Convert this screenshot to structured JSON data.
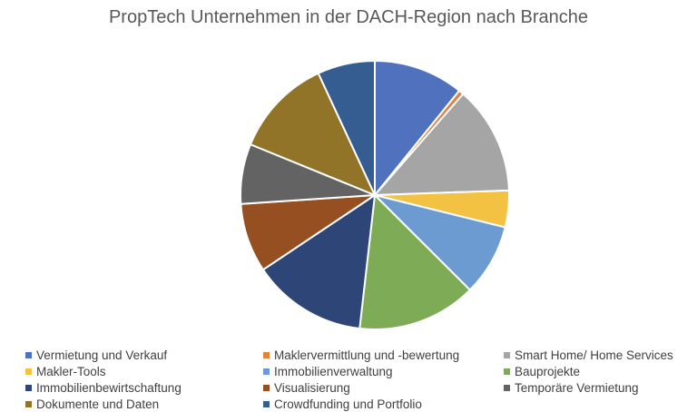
{
  "chart_data": {
    "type": "pie",
    "title": "PropTech Unternehmen in der DACH-Region nach Branche",
    "legend_position": "bottom",
    "categories": [
      "Vermietung und Verkauf",
      "Maklervermittlung und -bewertung",
      "Smart Home/ Home Services",
      "Makler-Tools",
      "Immobilienverwaltung",
      "Bauprojekte",
      "Immobilienbewirtschaftung",
      "Visualisierung",
      "Temporäre Vermietung",
      "Dokumente und Daten",
      "Crowdfunding und Portfolio"
    ],
    "values": [
      10.8,
      0.6,
      13.0,
      4.4,
      8.6,
      14.3,
      13.8,
      8.3,
      7.2,
      11.9,
      6.9
    ],
    "unit": "percent (estimated)",
    "colors": [
      "#4f71be",
      "#dd8344",
      "#a5a5a5",
      "#f3c242",
      "#6b9bd1",
      "#7eab55",
      "#2e4677",
      "#954f20",
      "#636363",
      "#917427",
      "#355d91"
    ]
  }
}
